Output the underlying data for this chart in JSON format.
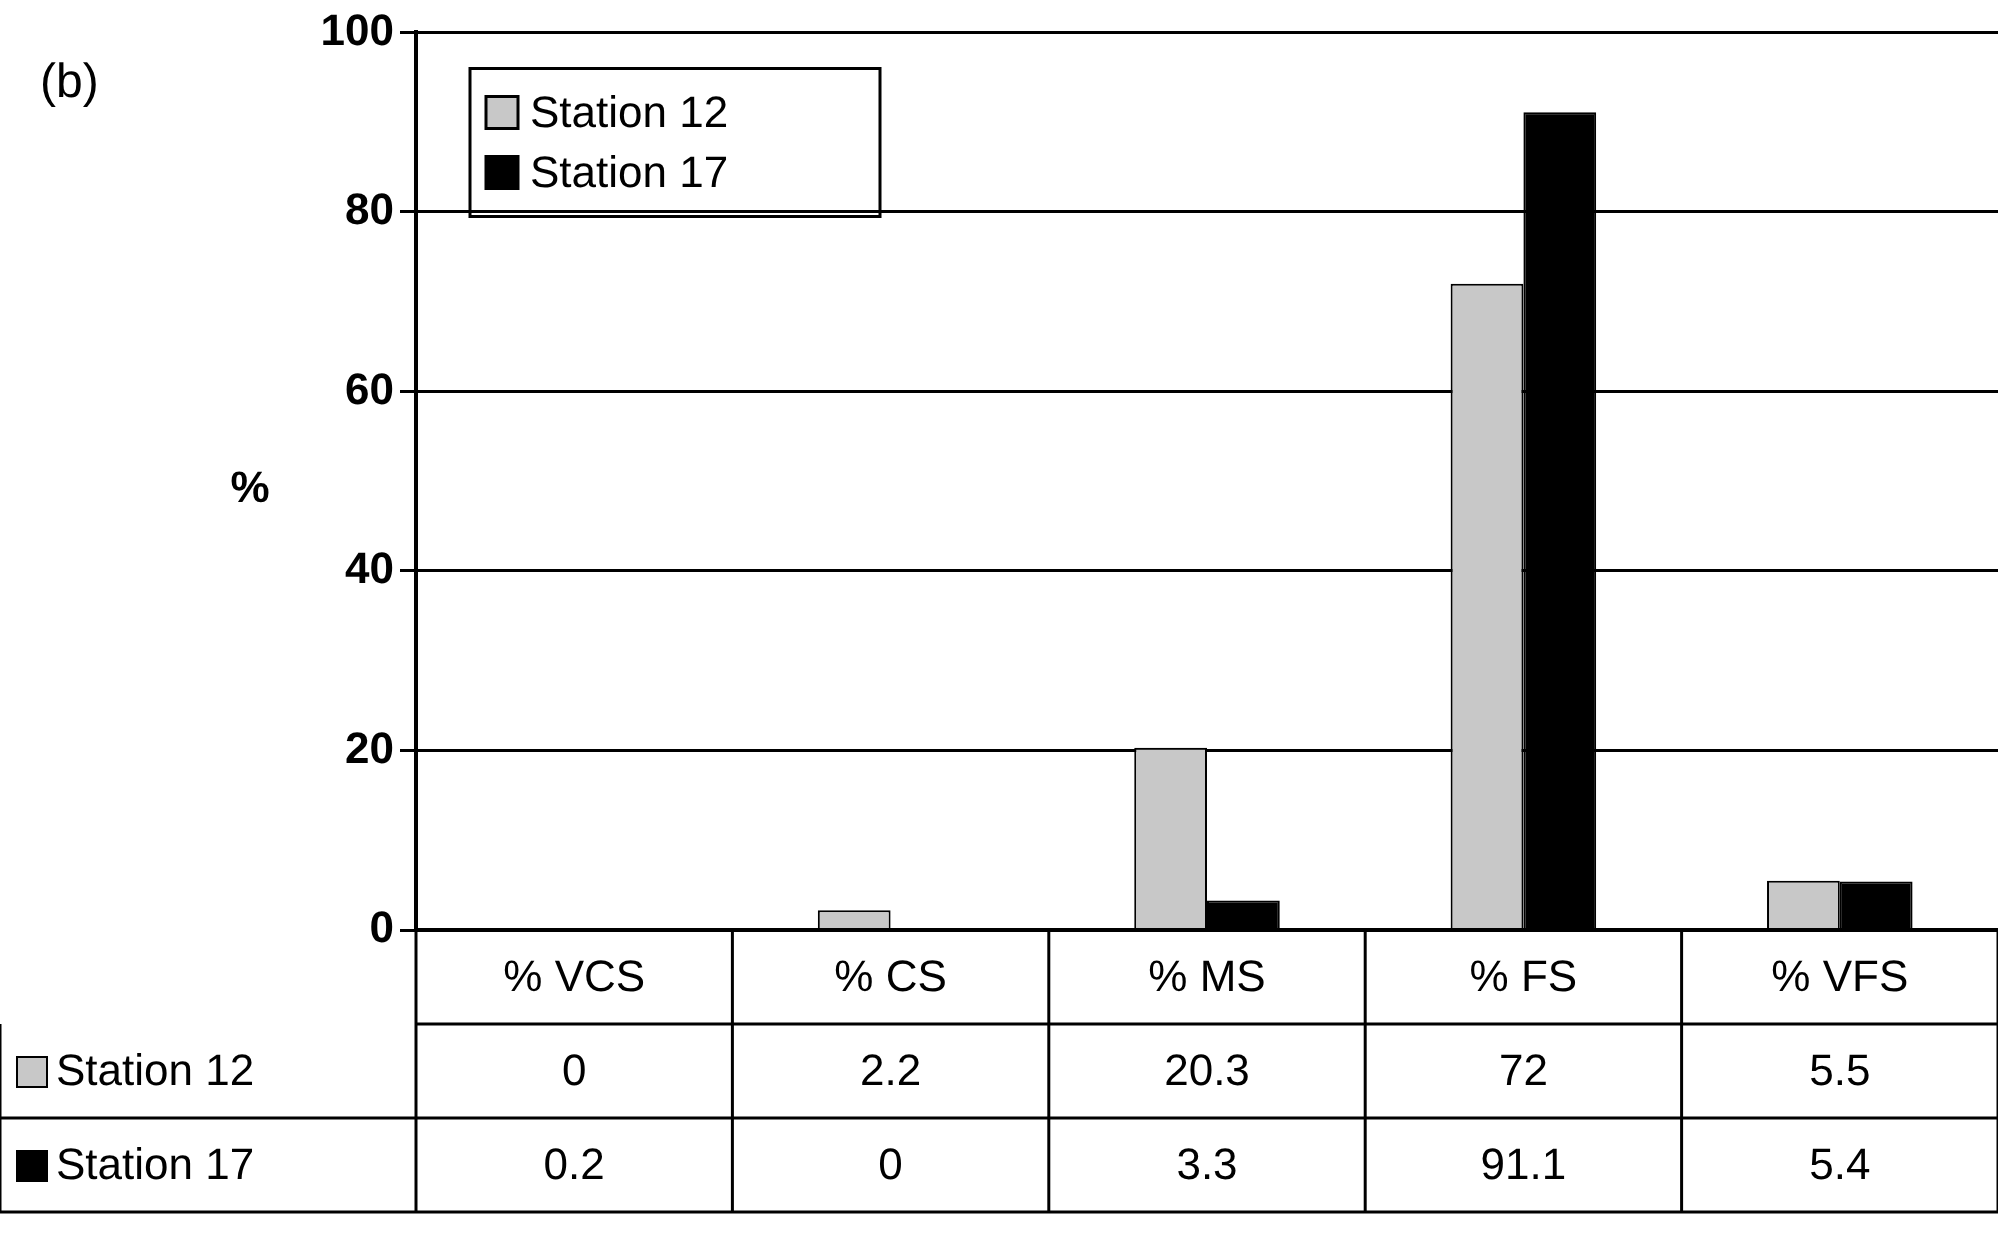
{
  "chart_data": {
    "type": "bar",
    "ylabel": "%",
    "annotations": [
      "(b)"
    ],
    "categories": [
      "% VCS",
      "% CS",
      "% MS",
      "% FS",
      "% VFS"
    ],
    "series": [
      {
        "name": "Station 12",
        "color": "#c8c8c8",
        "values": [
          0,
          2.2,
          20.3,
          72,
          5.5
        ]
      },
      {
        "name": "Station 17",
        "color": "#000000",
        "values": [
          0.2,
          0,
          3.3,
          91.1,
          5.4
        ]
      }
    ],
    "ylim": [
      0,
      100
    ],
    "yticks": [
      0,
      20,
      40,
      60,
      80,
      100
    ],
    "grid": "y",
    "legend": "top left",
    "data_labels": true
  }
}
